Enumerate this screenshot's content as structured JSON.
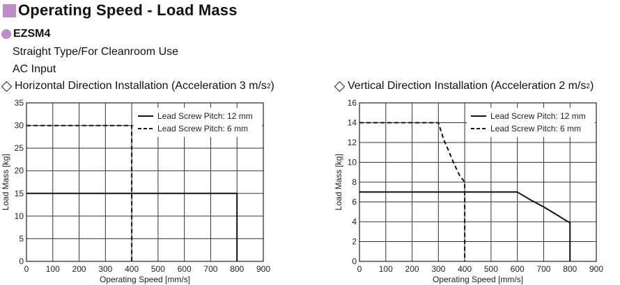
{
  "header": {
    "title": "Operating Speed - Load Mass",
    "model": "EZSM4",
    "subtitle1": "Straight Type/For Cleanroom Use",
    "subtitle2": "AC Input",
    "accent_color": "#c08cc8"
  },
  "chart_data": [
    {
      "type": "line",
      "title_pre": "Horizontal Direction Installation (Acceleration 3 m/s",
      "title_sup": "2",
      "title_post": ")",
      "xlabel": "Operating Speed [mm/s]",
      "ylabel": "Load Mass [kg]",
      "xlim": [
        0,
        900
      ],
      "ylim": [
        0,
        35
      ],
      "xticks": [
        0,
        100,
        200,
        300,
        400,
        500,
        600,
        700,
        800,
        900
      ],
      "yticks": [
        0,
        5,
        10,
        15,
        20,
        25,
        30,
        35
      ],
      "grid": true,
      "legend_position": "top-right",
      "series": [
        {
          "name": "Lead Screw Pitch: 12 mm",
          "dash": "solid",
          "points": [
            [
              0,
              15
            ],
            [
              800,
              15
            ],
            [
              800,
              0
            ]
          ]
        },
        {
          "name": "Lead Screw Pitch: 6 mm",
          "dash": "dashed",
          "points": [
            [
              0,
              30
            ],
            [
              400,
              30
            ],
            [
              400,
              0
            ]
          ]
        }
      ]
    },
    {
      "type": "line",
      "title_pre": "Vertical Direction Installation (Acceleration 2 m/s",
      "title_sup": "2",
      "title_post": ")",
      "xlabel": "Operating Speed [mm/s]",
      "ylabel": "Load Mass [kg]",
      "xlim": [
        0,
        900
      ],
      "ylim": [
        0,
        16
      ],
      "xticks": [
        0,
        100,
        200,
        300,
        400,
        500,
        600,
        700,
        800,
        900
      ],
      "yticks": [
        0,
        2,
        4,
        6,
        8,
        10,
        12,
        14,
        16
      ],
      "grid": true,
      "legend_position": "top-right",
      "series": [
        {
          "name": "Lead Screw Pitch: 12 mm",
          "dash": "solid",
          "points": [
            [
              0,
              7
            ],
            [
              600,
              7
            ],
            [
              650,
              6.2
            ],
            [
              700,
              5.5
            ],
            [
              750,
              4.7
            ],
            [
              780,
              4.2
            ],
            [
              800,
              3.9
            ],
            [
              800,
              0
            ]
          ]
        },
        {
          "name": "Lead Screw Pitch: 6 mm",
          "dash": "dashed",
          "points": [
            [
              0,
              14
            ],
            [
              300,
              14
            ],
            [
              320,
              12.3
            ],
            [
              340,
              11.1
            ],
            [
              360,
              9.8
            ],
            [
              380,
              8.7
            ],
            [
              400,
              8.0
            ],
            [
              400,
              0
            ]
          ]
        }
      ]
    }
  ]
}
